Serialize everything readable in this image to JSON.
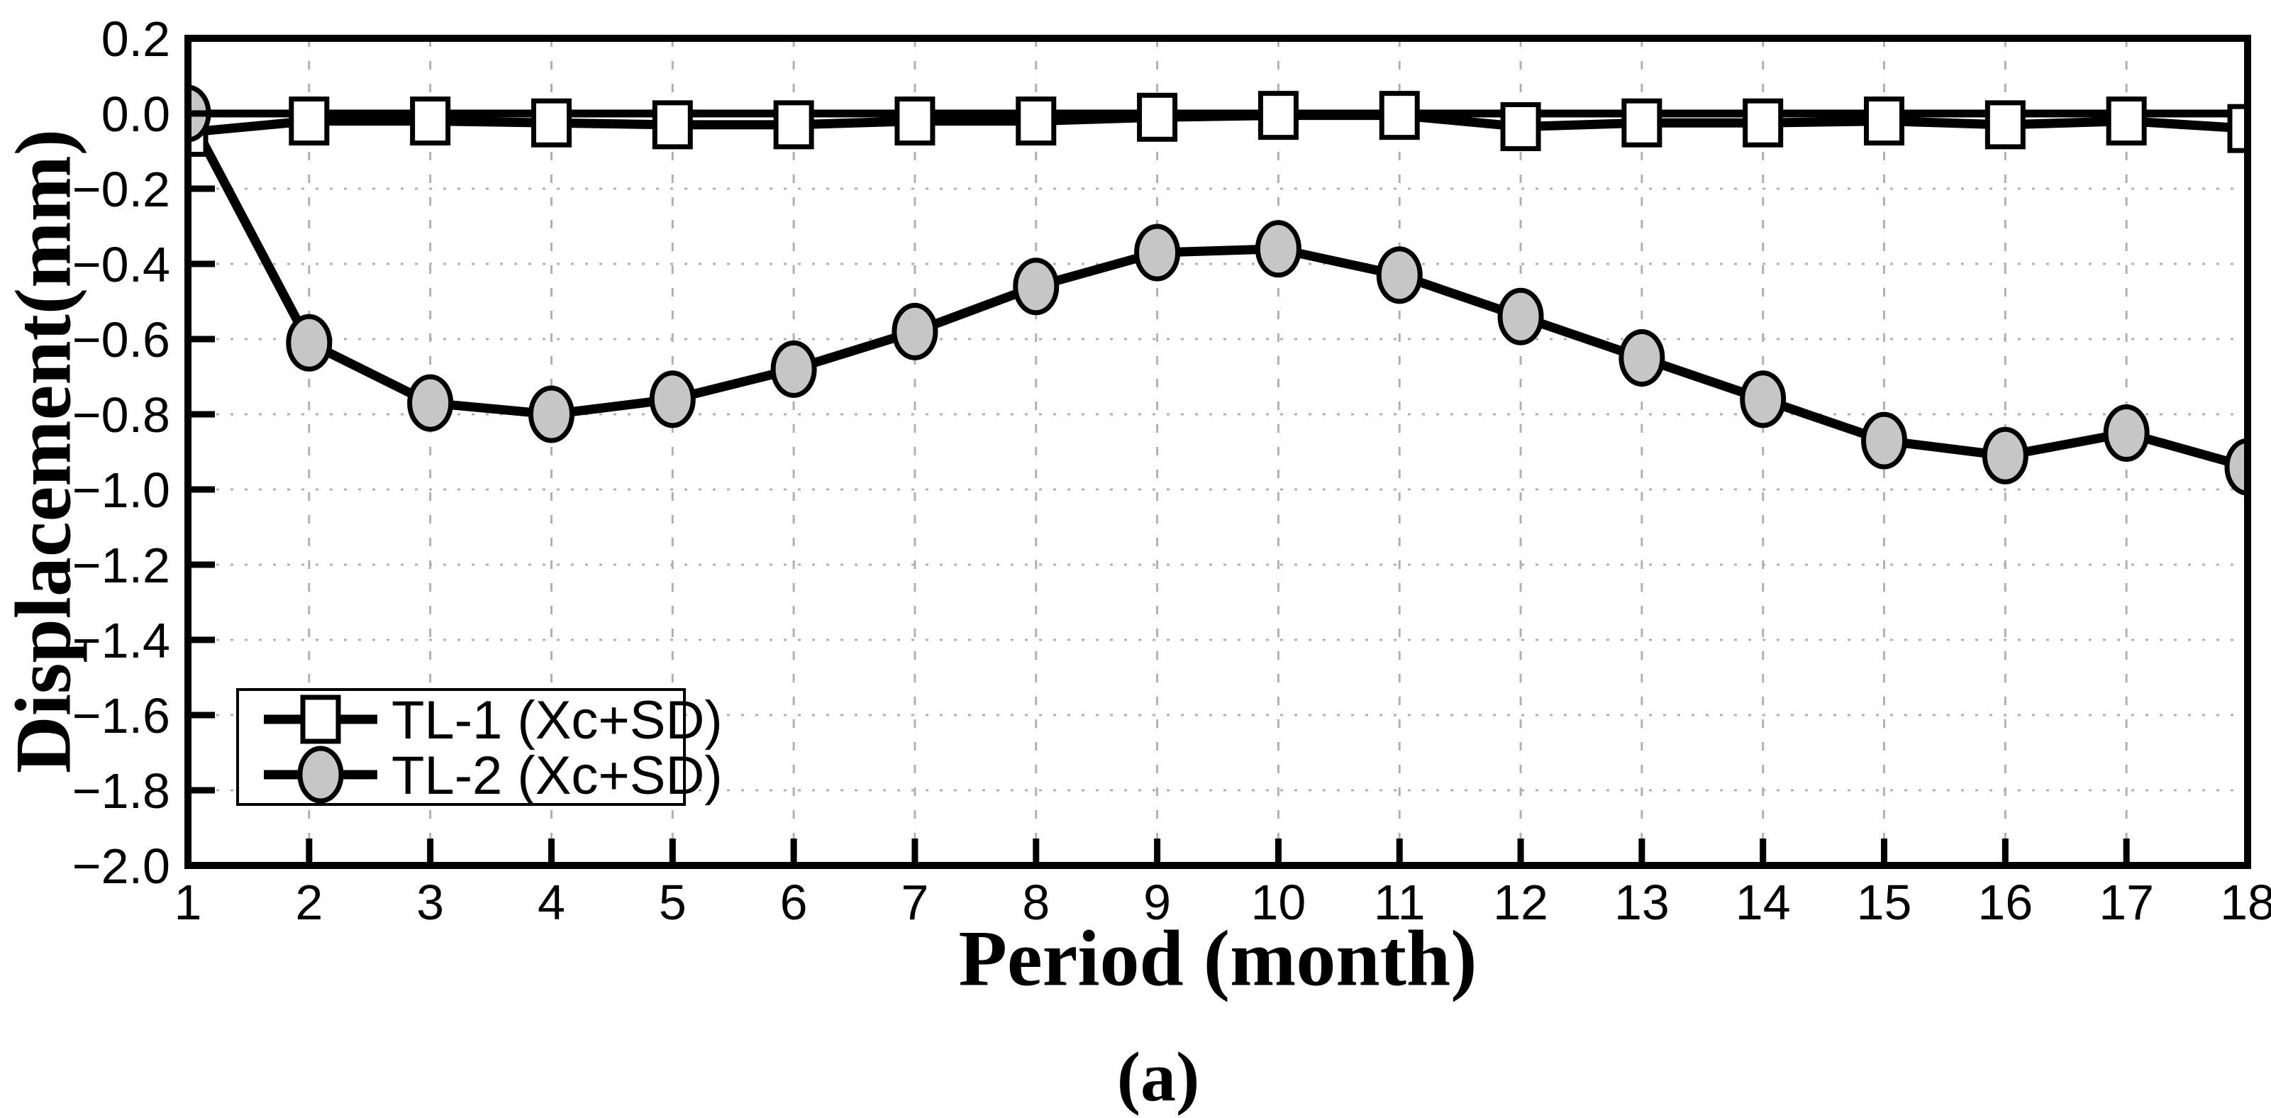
{
  "figure": {
    "caption": "(a)"
  },
  "chart_data": {
    "type": "line",
    "title": "",
    "xlabel": "Period (month)",
    "ylabel": "Displacement(mm)",
    "x": [
      1,
      2,
      3,
      4,
      5,
      6,
      7,
      8,
      9,
      10,
      11,
      12,
      13,
      14,
      15,
      16,
      17,
      18
    ],
    "xlim": [
      1,
      18
    ],
    "ylim": [
      -2.0,
      0.2
    ],
    "yticks": [
      0.2,
      0.0,
      -0.2,
      -0.4,
      -0.6,
      -0.8,
      -1.0,
      -1.2,
      -1.4,
      -1.6,
      -1.8,
      -2.0
    ],
    "grid": true,
    "grid_style": {
      "horizontal": "dotted",
      "vertical": "dashed",
      "color": "#b0b0b0"
    },
    "reference_line_y": 0.0,
    "legend_position": "lower-left",
    "series": [
      {
        "name": "TL-1 (Xc+SD)",
        "marker": "square",
        "marker_fill": "#ffffff",
        "line_color": "#000000",
        "values": [
          -0.05,
          -0.02,
          -0.02,
          -0.025,
          -0.03,
          -0.03,
          -0.02,
          -0.02,
          -0.01,
          -0.005,
          -0.005,
          -0.035,
          -0.025,
          -0.025,
          -0.02,
          -0.03,
          -0.02,
          -0.04
        ]
      },
      {
        "name": "TL-2 (Xc+SD)",
        "marker": "circle",
        "marker_fill": "#c6c6c6",
        "line_color": "#000000",
        "values": [
          0.0,
          -0.61,
          -0.77,
          -0.8,
          -0.76,
          -0.68,
          -0.58,
          -0.46,
          -0.37,
          -0.36,
          -0.43,
          -0.54,
          -0.65,
          -0.76,
          -0.87,
          -0.91,
          -0.85,
          -0.94
        ]
      }
    ],
    "colors": {
      "axis": "#000000",
      "text": "#000000",
      "grid": "#b0b0b0"
    }
  }
}
